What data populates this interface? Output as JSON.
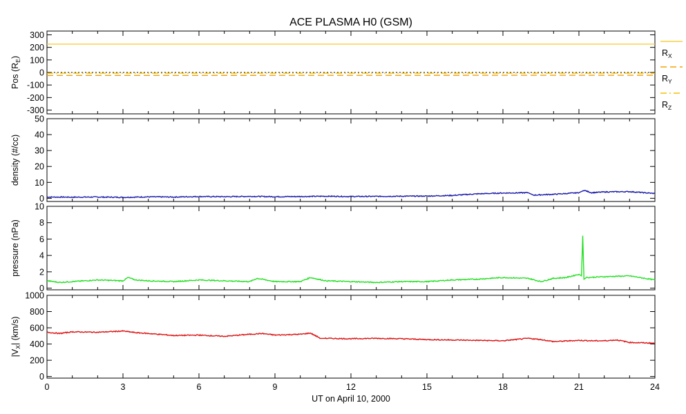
{
  "title": "ACE PLASMA H0 (GSM)",
  "xlabel": "UT on April 10, 2000",
  "chart_data": [
    {
      "type": "line",
      "panel": "position",
      "ylabel_main": "Pos (R",
      "ylabel_sub": "E",
      "ylabel_tail": ")",
      "xlim": [
        0,
        24
      ],
      "ylim": [
        -330,
        330
      ],
      "yticks": [
        300,
        200,
        100,
        0,
        -100,
        -200,
        -300
      ],
      "series": [
        {
          "name": "X",
          "color": "#f7cf3c",
          "style": "solid",
          "x": [
            0,
            24
          ],
          "y": [
            226,
            226
          ]
        },
        {
          "name": "Y",
          "color": "#f5a000",
          "style": "dashed",
          "x": [
            0,
            24
          ],
          "y": [
            -24,
            -22
          ]
        },
        {
          "name": "Z",
          "color": "#f5c000",
          "style": "dashdot",
          "x": [
            0,
            24
          ],
          "y": [
            -6,
            -6
          ]
        }
      ],
      "reference_line": {
        "y": 0,
        "style": "dotted",
        "color": "#000000"
      },
      "legend": [
        {
          "label": "R",
          "sub": "X",
          "color": "#f7cf3c",
          "style": "solid"
        },
        {
          "label": "R",
          "sub": "Y",
          "color": "#f5a000",
          "style": "dashed"
        },
        {
          "label": "R",
          "sub": "Z",
          "color": "#f5c000",
          "style": "dashdot"
        }
      ]
    },
    {
      "type": "line",
      "panel": "density",
      "ylabel": "density (#/cc)",
      "xlim": [
        0,
        24
      ],
      "ylim": [
        -2,
        50
      ],
      "yticks": [
        50,
        40,
        30,
        20,
        10,
        0
      ],
      "color": "#1a1aaa",
      "series": [
        {
          "x": [
            0,
            1,
            2,
            3,
            4,
            5,
            6,
            7,
            8,
            9,
            10,
            11,
            12,
            13,
            14,
            15,
            16,
            17,
            18,
            19,
            19.2,
            20,
            21,
            21.2,
            21.5,
            22,
            23,
            24
          ],
          "y": [
            0.8,
            0.7,
            0.8,
            0.6,
            0.9,
            0.8,
            1.1,
            1.0,
            1.2,
            1.0,
            1.1,
            1.3,
            1.1,
            1.2,
            1.3,
            1.4,
            1.8,
            2.8,
            3.3,
            3.5,
            2.0,
            2.5,
            3.5,
            5.0,
            3.5,
            4.0,
            4.2,
            3.0
          ]
        }
      ]
    },
    {
      "type": "line",
      "panel": "pressure",
      "ylabel": "pressure (nPa)",
      "xlim": [
        0,
        24
      ],
      "ylim": [
        -0.2,
        10
      ],
      "yticks": [
        10,
        8,
        6,
        4,
        2,
        0
      ],
      "color": "#22e022",
      "series": [
        {
          "x": [
            0,
            0.5,
            1,
            2,
            3,
            3.2,
            3.5,
            4,
            5,
            6,
            7,
            8,
            8.3,
            9,
            10,
            10.4,
            11,
            12,
            13,
            14,
            15,
            16,
            17,
            18,
            19,
            19.5,
            20,
            20.5,
            21,
            21.1,
            21.15,
            21.2,
            21.3,
            22,
            23,
            24
          ],
          "y": [
            0.9,
            0.7,
            0.8,
            1.0,
            0.9,
            1.3,
            1.0,
            0.9,
            0.8,
            1.0,
            0.9,
            0.8,
            1.2,
            0.8,
            0.8,
            1.3,
            0.9,
            0.8,
            0.7,
            0.8,
            0.8,
            1.0,
            1.1,
            1.3,
            1.2,
            0.8,
            1.2,
            1.3,
            1.7,
            1.5,
            6.4,
            1.1,
            1.3,
            1.4,
            1.5,
            1.0
          ]
        }
      ]
    },
    {
      "type": "line",
      "panel": "velocity",
      "ylabel_main": "|V",
      "ylabel_sub": "X",
      "ylabel_tail": "| (km/s)",
      "xlim": [
        0,
        24
      ],
      "ylim": [
        -20,
        1000
      ],
      "yticks": [
        1000,
        800,
        600,
        400,
        200,
        0
      ],
      "xticks": [
        0,
        3,
        6,
        9,
        12,
        15,
        18,
        21,
        24
      ],
      "color": "#dd1111",
      "series": [
        {
          "x": [
            0,
            0.5,
            1,
            2,
            3,
            3.5,
            4,
            5,
            6,
            7,
            8,
            8.5,
            9,
            10,
            10.4,
            10.8,
            11,
            12,
            13,
            14,
            15,
            16,
            17,
            18,
            19,
            19.5,
            20,
            21,
            21.5,
            22,
            22.5,
            23,
            24
          ],
          "y": [
            545,
            530,
            550,
            545,
            560,
            540,
            530,
            505,
            510,
            495,
            520,
            530,
            510,
            520,
            535,
            470,
            470,
            465,
            470,
            465,
            455,
            450,
            445,
            440,
            470,
            455,
            430,
            445,
            440,
            440,
            450,
            420,
            410
          ]
        }
      ]
    }
  ]
}
